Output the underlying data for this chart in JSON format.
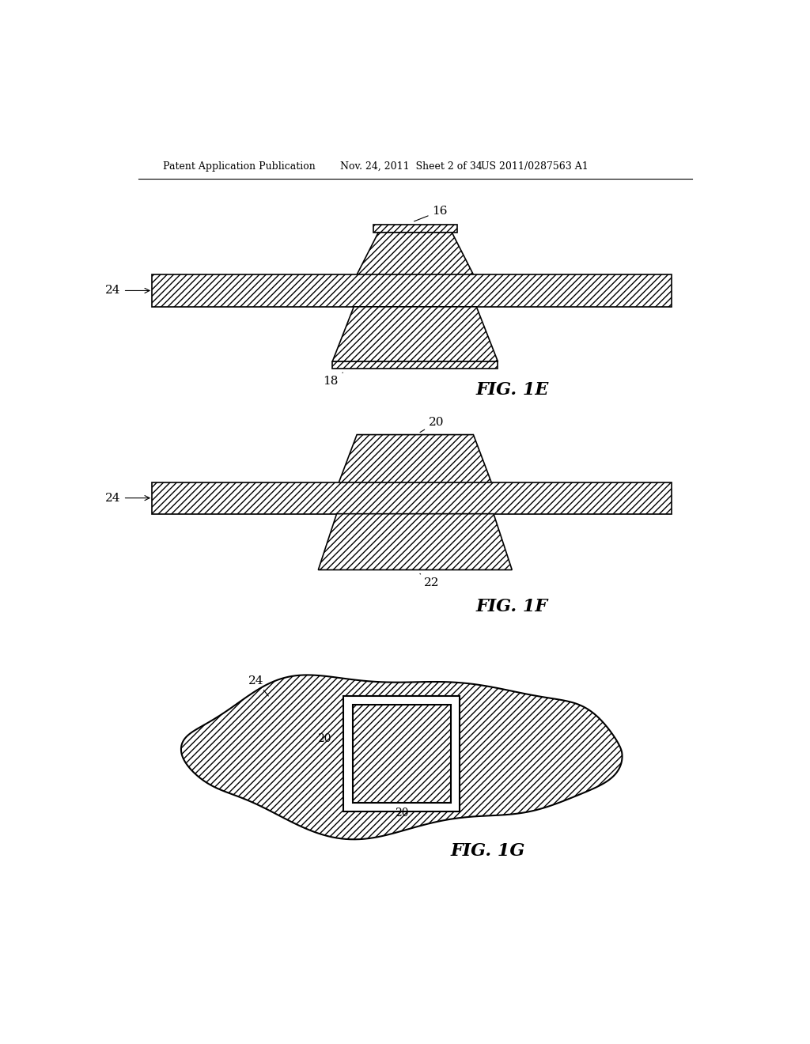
{
  "bg_color": "#ffffff",
  "header_left": "Patent Application Publication",
  "header_mid": "Nov. 24, 2011  Sheet 2 of 34",
  "header_right": "US 2011/0287563 A1",
  "fig1e_label": "FIG. 1E",
  "fig1f_label": "FIG. 1F",
  "fig1g_label": "FIG. 1G",
  "hatch_pattern": "////",
  "line_color": "#000000",
  "fill_color": "#ffffff"
}
